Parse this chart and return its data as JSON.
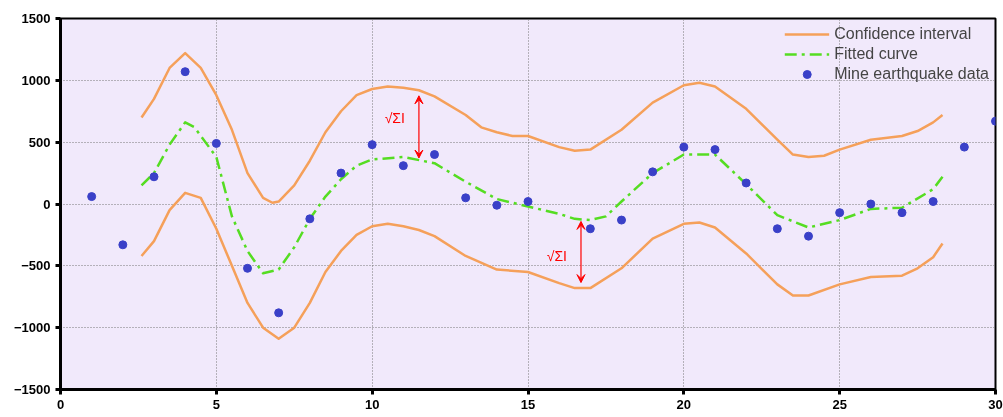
{
  "chart_data": {
    "type": "line",
    "xlim": [
      0,
      30
    ],
    "ylim": [
      -1500,
      1500
    ],
    "xticks": [
      0,
      5,
      10,
      15,
      20,
      25,
      30
    ],
    "yticks": [
      -1500,
      -1000,
      -500,
      0,
      500,
      1000,
      1500
    ],
    "grid": true,
    "legend": "top right",
    "series": [
      {
        "name": "Confidence interval",
        "color": "#f5a05a",
        "line_style": "solid",
        "x": [
          2.6,
          3,
          3.5,
          4,
          4.5,
          5,
          5.5,
          6,
          6.5,
          6.8,
          7,
          7.5,
          8,
          8.5,
          9,
          9.5,
          10,
          10.5,
          11,
          11.5,
          12,
          13,
          13.5,
          14,
          14.5,
          15,
          16,
          16.5,
          17,
          18,
          19,
          20,
          20.5,
          21,
          22,
          23,
          23.5,
          24,
          24.5,
          25,
          26,
          27,
          27.5,
          28,
          28.3
        ],
        "values": [
          700,
          850,
          1100,
          1220,
          1100,
          880,
          600,
          250,
          50,
          10,
          20,
          150,
          350,
          580,
          750,
          880,
          930,
          950,
          940,
          920,
          870,
          720,
          620,
          580,
          550,
          550,
          460,
          430,
          440,
          600,
          820,
          960,
          980,
          950,
          770,
          520,
          400,
          380,
          390,
          440,
          520,
          550,
          590,
          660,
          720
        ]
      },
      {
        "color": "#f5a05a",
        "line_style": "solid",
        "x": [
          2.6,
          3,
          3.5,
          4,
          4.5,
          5,
          5.5,
          6,
          6.5,
          7,
          7.5,
          8,
          8.5,
          9,
          9.5,
          10,
          10.5,
          11,
          11.5,
          12,
          13,
          14,
          15,
          16,
          16.5,
          17,
          18,
          19,
          20,
          20.5,
          21,
          22,
          23,
          23.5,
          24,
          25,
          26,
          27,
          27.5,
          28,
          28.3
        ],
        "values": [
          -420,
          -300,
          -50,
          90,
          50,
          -200,
          -500,
          -800,
          -1000,
          -1090,
          -1000,
          -800,
          -550,
          -380,
          -250,
          -180,
          -160,
          -180,
          -210,
          -260,
          -420,
          -530,
          -550,
          -640,
          -680,
          -680,
          -520,
          -280,
          -160,
          -150,
          -190,
          -400,
          -650,
          -740,
          -740,
          -650,
          -590,
          -580,
          -520,
          -430,
          -320
        ]
      },
      {
        "name": "Fitted curve",
        "color": "#55dd22",
        "line_style": "dashed",
        "x": [
          2.6,
          3,
          3.5,
          4,
          4.3,
          5,
          5.5,
          6,
          6.5,
          7,
          7.5,
          8,
          8.5,
          9,
          9.5,
          10,
          11,
          12,
          13,
          14,
          15,
          16,
          16.5,
          17,
          17.5,
          18,
          19,
          20,
          21,
          22,
          23,
          24,
          25,
          26,
          27,
          28,
          28.3
        ],
        "values": [
          150,
          250,
          480,
          660,
          620,
          380,
          -100,
          -380,
          -560,
          -530,
          -350,
          -120,
          60,
          200,
          310,
          360,
          380,
          330,
          180,
          40,
          -20,
          -80,
          -120,
          -130,
          -100,
          20,
          250,
          400,
          400,
          160,
          -90,
          -190,
          -130,
          -40,
          -30,
          120,
          220
        ]
      },
      {
        "name": "Mine earthquake data",
        "type": "scatter",
        "color": "#3a40c8",
        "marker": "circle",
        "x": [
          1,
          2,
          3,
          4,
          5,
          6,
          7,
          8,
          9,
          10,
          11,
          12,
          13,
          14,
          15,
          17,
          18,
          19,
          20,
          21,
          22,
          23,
          24,
          25,
          26,
          27,
          28,
          29,
          30
        ],
        "values": [
          60,
          -330,
          220,
          1070,
          490,
          -520,
          -880,
          -120,
          250,
          480,
          310,
          400,
          50,
          -10,
          20,
          -200,
          -130,
          260,
          460,
          440,
          170,
          -200,
          -260,
          -70,
          0,
          -70,
          20,
          460,
          670
        ]
      }
    ],
    "annotations": [
      {
        "text": "√ΣI",
        "x": 11.5,
        "y": 920
      },
      {
        "text": "√ΣI",
        "x": 16.7,
        "y": -680
      }
    ]
  }
}
